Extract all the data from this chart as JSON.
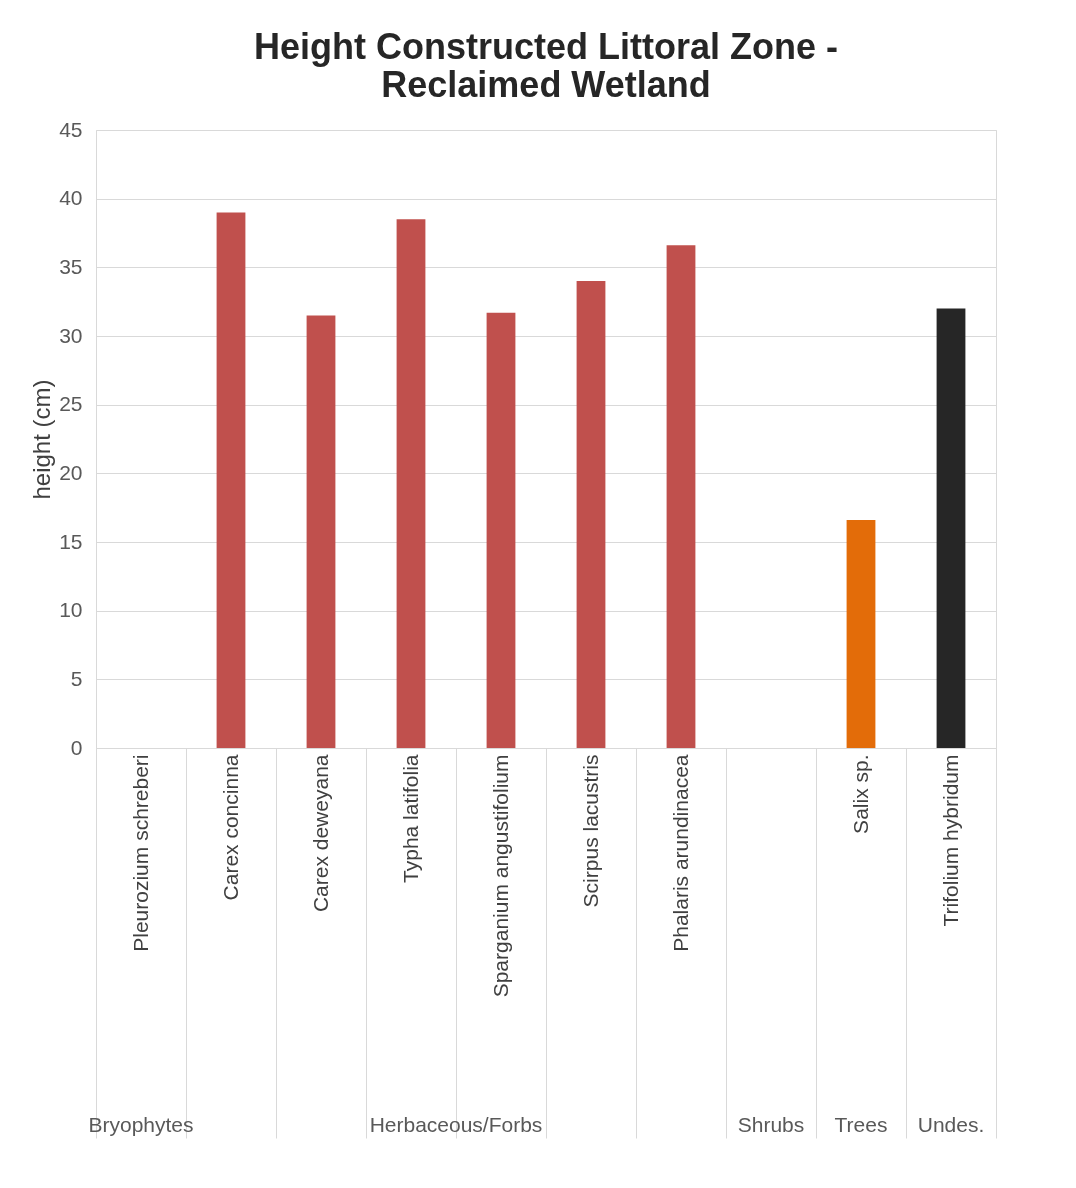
{
  "chart_data": {
    "type": "bar",
    "title": "Height   Constructed Littoral Zone - Reclaimed Wetland",
    "ylabel": "height (cm)",
    "categories": [
      "Pleurozium schreberi",
      "Carex concinna",
      "Carex deweyana",
      "Typha latifolia",
      "Sparganium angustifolium",
      "Scirpus lacustris",
      "Phalaris arundinacea",
      null,
      "Salix sp.",
      "Trifolium hybridum"
    ],
    "values": [
      null,
      39,
      31.5,
      38.5,
      31.7,
      34,
      36.6,
      null,
      16.6,
      32
    ],
    "colors": [
      "#c0504d",
      "#c0504d",
      "#c0504d",
      "#c0504d",
      "#c0504d",
      "#c0504d",
      "#c0504d",
      "#c0504d",
      "#e36c09",
      "#262626"
    ],
    "ylim": [
      0,
      45
    ],
    "yticks": [
      0,
      5,
      10,
      15,
      20,
      25,
      30,
      35,
      40,
      45
    ],
    "grid": "y",
    "annotations": [
      "Bryophytes",
      "Herbaceous/Forbs",
      "Shrubs",
      "Trees",
      "Undes."
    ]
  }
}
